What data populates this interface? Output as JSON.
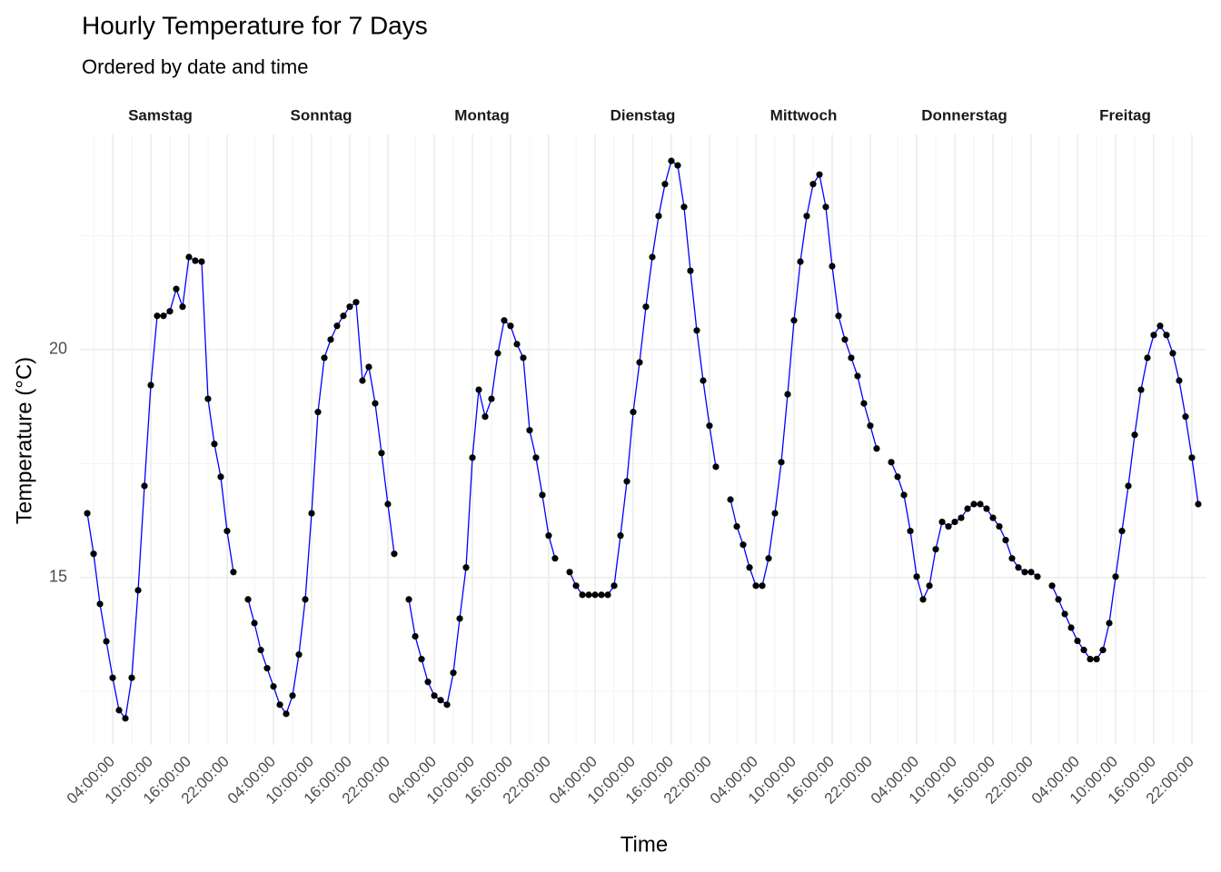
{
  "chart_data": {
    "type": "line",
    "title": "Hourly Temperature for 7 Days",
    "subtitle": "Ordered by date and time",
    "x_label": "Time",
    "y_label": "Temperature (°C)",
    "x": [
      0,
      1,
      2,
      3,
      4,
      5,
      6,
      7,
      8,
      9,
      10,
      11,
      12,
      13,
      14,
      15,
      16,
      17,
      18,
      19,
      20,
      21,
      22,
      23
    ],
    "xlim": [
      -1.15,
      24.15
    ],
    "xticks": [
      {
        "value": 4,
        "label": "04:00:00"
      },
      {
        "value": 10,
        "label": "10:00:00"
      },
      {
        "value": 16,
        "label": "16:00:00"
      },
      {
        "value": 22,
        "label": "22:00:00"
      }
    ],
    "x_minor_ticks": [
      1,
      7,
      13,
      19
    ],
    "ylim": [
      11.33,
      24.72
    ],
    "yticks": [
      15,
      20
    ],
    "y_minor_ticks": [
      12.5,
      17.5,
      22.5
    ],
    "grid": true,
    "line_color": "blue",
    "point_color": "black",
    "series": [
      {
        "name": "Samstag",
        "values": [
          16.41,
          15.52,
          14.42,
          13.6,
          12.8,
          12.09,
          11.91,
          12.8,
          14.72,
          17.01,
          19.22,
          20.74,
          20.74,
          20.84,
          21.33,
          20.94,
          22.03,
          21.95,
          21.93,
          18.92,
          17.93,
          17.21,
          16.02,
          15.12
        ]
      },
      {
        "name": "Sonntag",
        "values": [
          14.52,
          14.0,
          13.41,
          13.01,
          12.61,
          12.21,
          12.01,
          12.41,
          13.31,
          14.52,
          16.41,
          18.63,
          19.82,
          20.22,
          20.52,
          20.74,
          20.94,
          21.04,
          19.32,
          19.62,
          18.82,
          17.73,
          16.61,
          15.52
        ]
      },
      {
        "name": "Montag",
        "values": [
          14.52,
          13.71,
          13.21,
          12.71,
          12.41,
          12.31,
          12.21,
          12.91,
          14.1,
          15.22,
          17.63,
          19.12,
          18.53,
          18.92,
          19.92,
          20.64,
          20.52,
          20.12,
          19.82,
          18.23,
          17.63,
          16.81,
          15.92,
          15.42
        ]
      },
      {
        "name": "Dienstag",
        "values": [
          15.12,
          14.82,
          14.62,
          14.62,
          14.62,
          14.62,
          14.62,
          14.82,
          15.92,
          17.11,
          18.63,
          19.72,
          20.94,
          22.03,
          22.93,
          23.63,
          24.14,
          24.04,
          23.13,
          21.73,
          20.42,
          19.32,
          18.33,
          17.43
        ]
      },
      {
        "name": "Mittwoch",
        "values": [
          16.71,
          16.12,
          15.72,
          15.22,
          14.82,
          14.82,
          15.42,
          16.41,
          17.53,
          19.02,
          20.64,
          21.93,
          22.93,
          23.63,
          23.84,
          23.13,
          21.83,
          20.74,
          20.22,
          19.82,
          19.42,
          18.82,
          18.33,
          17.83
        ]
      },
      {
        "name": "Donnerstag",
        "values": [
          17.53,
          17.21,
          16.81,
          16.02,
          15.02,
          14.52,
          14.82,
          15.62,
          16.22,
          16.12,
          16.22,
          16.31,
          16.51,
          16.61,
          16.61,
          16.51,
          16.31,
          16.12,
          15.82,
          15.42,
          15.22,
          15.12,
          15.12,
          15.02
        ]
      },
      {
        "name": "Freitag",
        "values": [
          14.82,
          14.52,
          14.2,
          13.9,
          13.61,
          13.41,
          13.21,
          13.21,
          13.41,
          14.0,
          15.02,
          16.02,
          17.01,
          18.13,
          19.12,
          19.82,
          20.32,
          20.52,
          20.32,
          19.92,
          19.32,
          18.53,
          17.63,
          16.61
        ]
      }
    ]
  }
}
